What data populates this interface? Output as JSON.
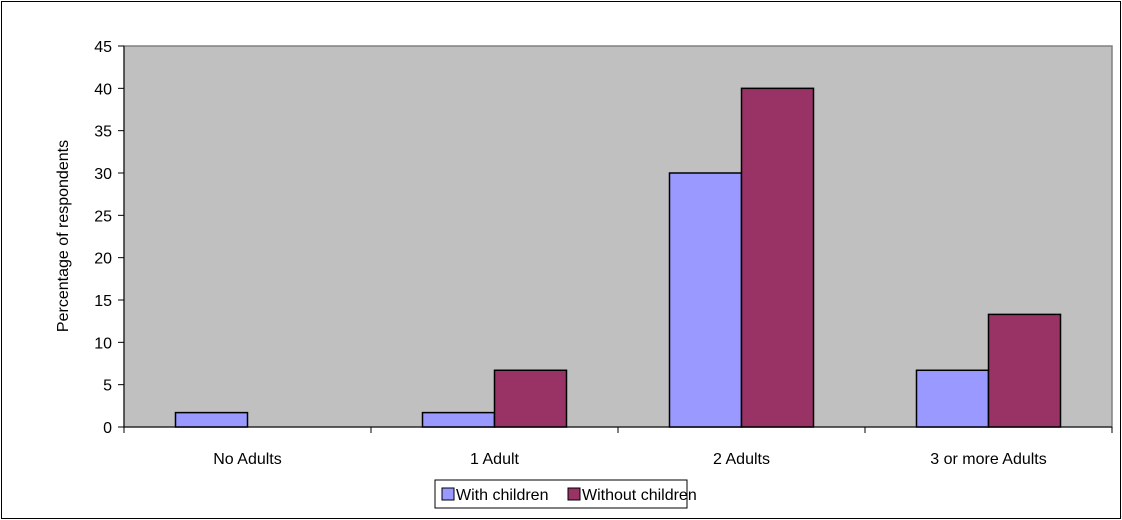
{
  "chart_data": {
    "type": "bar",
    "title": "",
    "xlabel": "",
    "ylabel": "Percentage of respondents",
    "ylim": [
      0,
      45
    ],
    "ytick_step": 5,
    "yticks": [
      "0",
      "5",
      "10",
      "15",
      "20",
      "25",
      "30",
      "35",
      "40",
      "45"
    ],
    "categories": [
      "No Adults",
      "1 Adult",
      "2 Adults",
      "3 or more Adults"
    ],
    "series": [
      {
        "name": "With children",
        "color": "#9999FF",
        "values": [
          1.7,
          1.7,
          30,
          6.7
        ]
      },
      {
        "name": "Without children",
        "color": "#993366",
        "values": [
          0,
          6.7,
          40,
          13.3
        ]
      }
    ],
    "plot_background": "#C0C0C0",
    "grid": false,
    "legend_position": "bottom"
  }
}
